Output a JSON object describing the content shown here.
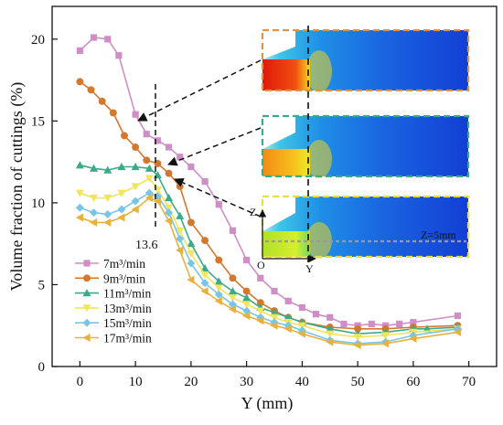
{
  "chart_data": {
    "type": "line",
    "xlabel": "Y (mm)",
    "ylabel": "Volume fraction of cuttings (%)",
    "xlim": [
      -5,
      75
    ],
    "ylim": [
      0,
      22
    ],
    "xticks": [
      0,
      10,
      20,
      30,
      40,
      50,
      60,
      70
    ],
    "yticks": [
      0,
      5,
      10,
      15,
      20
    ],
    "legend_position": "bottom-left",
    "series": [
      {
        "name": "7m³/min",
        "color": "#cf8fc6",
        "marker": "square",
        "x": [
          0,
          2.5,
          5,
          7,
          10,
          12,
          14,
          16,
          18,
          20,
          22.5,
          25,
          27.5,
          30,
          32.5,
          35,
          37.5,
          40,
          42.5,
          45,
          47.5,
          50,
          52.5,
          55,
          57.5,
          60,
          68
        ],
        "y": [
          19.3,
          20.1,
          20.0,
          19.0,
          15.4,
          14.2,
          13.8,
          13.4,
          12.8,
          12.2,
          11.3,
          9.9,
          8.3,
          6.5,
          5.4,
          4.6,
          4.0,
          3.6,
          3.2,
          3.0,
          2.6,
          2.5,
          2.6,
          2.5,
          2.6,
          2.7,
          3.1
        ]
      },
      {
        "name": "9m³/min",
        "color": "#d4772f",
        "marker": "circle",
        "x": [
          0,
          2,
          4,
          6,
          8,
          10,
          12,
          14,
          16,
          18,
          20,
          22.5,
          25,
          27.5,
          30,
          32.5,
          35,
          37.5,
          40,
          45,
          50,
          55,
          60,
          68
        ],
        "y": [
          17.4,
          16.9,
          16.2,
          15.5,
          14.1,
          13.4,
          12.6,
          12.4,
          11.8,
          11.0,
          8.8,
          7.7,
          6.5,
          5.4,
          4.6,
          3.9,
          3.4,
          3.0,
          2.7,
          2.4,
          2.3,
          2.3,
          2.4,
          2.5
        ]
      },
      {
        "name": "11m³/min",
        "color": "#3aaa8a",
        "marker": "triangle-up",
        "x": [
          0,
          2.5,
          5,
          7.5,
          10,
          12.5,
          14,
          16,
          18,
          20,
          22.5,
          25,
          27.5,
          30,
          32.5,
          35,
          37.5,
          40,
          45,
          50,
          55,
          60,
          62.5,
          68
        ],
        "y": [
          12.3,
          12.1,
          12.0,
          12.2,
          12.2,
          12.1,
          11.7,
          10.3,
          9.2,
          7.5,
          6.0,
          5.2,
          4.6,
          4.2,
          3.6,
          3.3,
          3.0,
          2.7,
          2.3,
          2.0,
          2.1,
          2.3,
          2.3,
          2.4
        ]
      },
      {
        "name": "13m³/min",
        "color": "#f2e45c",
        "marker": "triangle-down",
        "x": [
          0,
          2.5,
          5,
          7.5,
          10,
          12.5,
          14,
          16,
          18,
          20,
          22.5,
          25,
          27.5,
          30,
          32.5,
          35,
          37.5,
          40,
          45,
          50,
          55,
          60,
          68
        ],
        "y": [
          10.6,
          10.3,
          10.3,
          10.6,
          11.0,
          11.5,
          10.8,
          9.7,
          8.3,
          6.9,
          5.6,
          4.8,
          4.2,
          3.8,
          3.4,
          3.0,
          2.7,
          2.5,
          2.0,
          1.8,
          1.9,
          2.1,
          2.3
        ]
      },
      {
        "name": "15m³/min",
        "color": "#79c5e8",
        "marker": "diamond",
        "x": [
          0,
          2.5,
          5,
          7.5,
          10,
          12.5,
          14,
          16,
          18,
          20,
          22.5,
          25,
          27.5,
          30,
          32.5,
          35,
          37.5,
          40,
          45,
          50,
          55,
          60,
          68
        ],
        "y": [
          9.7,
          9.4,
          9.3,
          9.6,
          10.1,
          10.6,
          10.4,
          9.4,
          7.8,
          6.3,
          5.1,
          4.4,
          3.8,
          3.4,
          3.0,
          2.7,
          2.5,
          2.2,
          1.6,
          1.4,
          1.5,
          1.9,
          2.3
        ]
      },
      {
        "name": "17m³/min",
        "color": "#e8b13b",
        "marker": "triangle-left",
        "x": [
          0,
          2.5,
          5,
          7.5,
          10,
          12.5,
          14,
          16,
          18,
          20,
          22.5,
          25,
          27.5,
          30,
          32.5,
          35,
          37.5,
          40,
          45,
          50,
          55,
          60,
          68
        ],
        "y": [
          9.1,
          8.8,
          8.8,
          9.1,
          9.6,
          10.3,
          10.1,
          8.9,
          7.1,
          5.3,
          4.6,
          4.0,
          3.5,
          3.1,
          2.8,
          2.5,
          2.3,
          2.0,
          1.5,
          1.3,
          1.4,
          1.7,
          2.1
        ]
      }
    ],
    "annotations": {
      "x_marker_label": "13.6",
      "x_marker_value": 13.6,
      "inset_z_label": "Z",
      "inset_y_label": "Y",
      "inset_origin_label": "O",
      "inset_section_label": "Z=5mm"
    }
  }
}
